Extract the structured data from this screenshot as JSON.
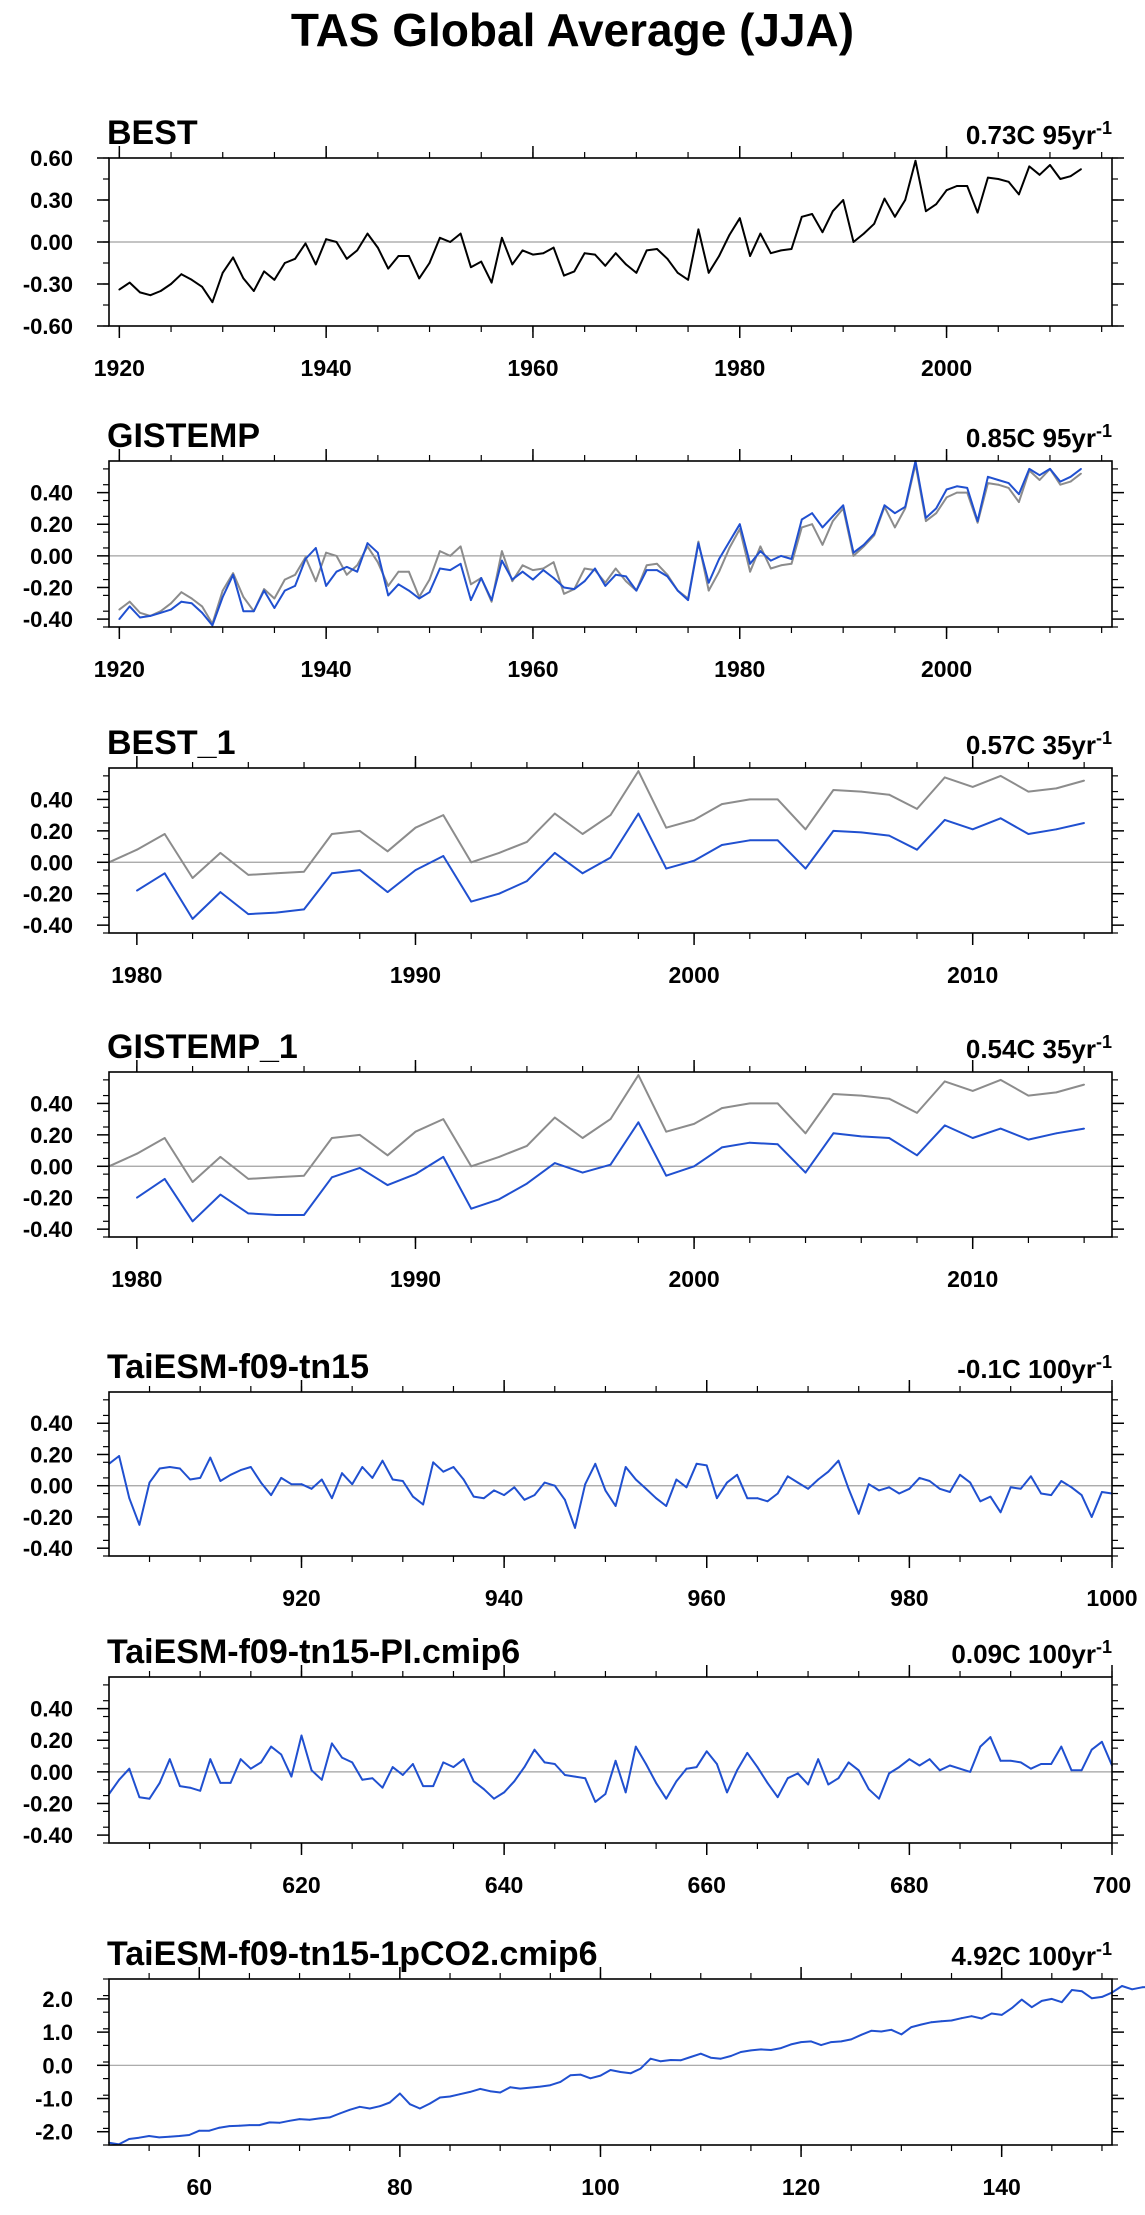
{
  "figure": {
    "title": "TAS Global Average (JJA)"
  },
  "colors": {
    "observed": "#000000",
    "reference": "#8c8c8c",
    "model": "#2050d0",
    "zero_line": "#a0a0a0"
  },
  "chart_data": [
    {
      "type": "line",
      "title": "BEST",
      "trend": "0.73C 95yr",
      "trend_sup": "-1",
      "xlim": [
        1919,
        2016
      ],
      "ylim": [
        -0.6,
        0.6
      ],
      "xticks": [
        1920,
        1940,
        1960,
        1980,
        2000
      ],
      "yticks": [
        -0.6,
        -0.3,
        0.0,
        0.3,
        0.6
      ],
      "ytick_labels": [
        "-0.60",
        "-0.30",
        "0.00",
        "0.30",
        "0.60"
      ],
      "grid": false,
      "series": [
        {
          "role": "observed",
          "x_start": 1920,
          "values": [
            -0.34,
            -0.29,
            -0.36,
            -0.38,
            -0.35,
            -0.3,
            -0.23,
            -0.27,
            -0.32,
            -0.43,
            -0.22,
            -0.11,
            -0.26,
            -0.35,
            -0.21,
            -0.27,
            -0.15,
            -0.12,
            -0.01,
            -0.16,
            0.02,
            0.0,
            -0.12,
            -0.06,
            0.06,
            -0.04,
            -0.19,
            -0.1,
            -0.1,
            -0.26,
            -0.15,
            0.03,
            0.0,
            0.06,
            -0.18,
            -0.14,
            -0.29,
            0.03,
            -0.16,
            -0.06,
            -0.09,
            -0.08,
            -0.04,
            -0.24,
            -0.21,
            -0.08,
            -0.09,
            -0.17,
            -0.08,
            -0.16,
            -0.22,
            -0.06,
            -0.05,
            -0.12,
            -0.22,
            -0.27,
            0.09,
            -0.22,
            -0.1,
            0.05,
            0.17,
            -0.1,
            0.06,
            -0.08,
            -0.06,
            -0.05,
            0.18,
            0.2,
            0.07,
            0.22,
            0.3,
            0.0,
            0.06,
            0.13,
            0.31,
            0.18,
            0.3,
            0.58,
            0.22,
            0.27,
            0.37,
            0.4,
            0.4,
            0.21,
            0.46,
            0.45,
            0.43,
            0.34,
            0.54,
            0.48,
            0.55,
            0.45,
            0.47,
            0.52
          ]
        }
      ]
    },
    {
      "type": "line",
      "title": "GISTEMP",
      "trend": "0.85C 95yr",
      "trend_sup": "-1",
      "xlim": [
        1919,
        2016
      ],
      "ylim": [
        -0.45,
        0.6
      ],
      "xticks": [
        1920,
        1940,
        1960,
        1980,
        2000
      ],
      "yticks": [
        -0.4,
        -0.2,
        0.0,
        0.2,
        0.4
      ],
      "ytick_labels": [
        "-0.40",
        "-0.20",
        "0.00",
        "0.20",
        "0.40"
      ],
      "grid": false,
      "series": [
        {
          "role": "reference",
          "x_start": 1920,
          "values": [
            -0.34,
            -0.29,
            -0.36,
            -0.38,
            -0.35,
            -0.3,
            -0.23,
            -0.27,
            -0.32,
            -0.43,
            -0.22,
            -0.11,
            -0.26,
            -0.35,
            -0.21,
            -0.27,
            -0.15,
            -0.12,
            -0.01,
            -0.16,
            0.02,
            0.0,
            -0.12,
            -0.06,
            0.06,
            -0.04,
            -0.19,
            -0.1,
            -0.1,
            -0.26,
            -0.15,
            0.03,
            0.0,
            0.06,
            -0.18,
            -0.14,
            -0.29,
            0.03,
            -0.16,
            -0.06,
            -0.09,
            -0.08,
            -0.04,
            -0.24,
            -0.21,
            -0.08,
            -0.09,
            -0.17,
            -0.08,
            -0.16,
            -0.22,
            -0.06,
            -0.05,
            -0.12,
            -0.22,
            -0.27,
            0.09,
            -0.22,
            -0.1,
            0.05,
            0.17,
            -0.1,
            0.06,
            -0.08,
            -0.06,
            -0.05,
            0.18,
            0.2,
            0.07,
            0.22,
            0.3,
            0.0,
            0.06,
            0.13,
            0.31,
            0.18,
            0.3,
            0.58,
            0.22,
            0.27,
            0.37,
            0.4,
            0.4,
            0.21,
            0.46,
            0.45,
            0.43,
            0.34,
            0.54,
            0.48,
            0.55,
            0.45,
            0.47,
            0.52
          ]
        },
        {
          "role": "model",
          "x_start": 1920,
          "values": [
            -0.4,
            -0.32,
            -0.39,
            -0.38,
            -0.36,
            -0.34,
            -0.29,
            -0.3,
            -0.36,
            -0.44,
            -0.26,
            -0.12,
            -0.35,
            -0.35,
            -0.22,
            -0.33,
            -0.22,
            -0.19,
            -0.02,
            0.05,
            -0.19,
            -0.1,
            -0.07,
            -0.1,
            0.08,
            0.02,
            -0.25,
            -0.18,
            -0.22,
            -0.27,
            -0.23,
            -0.08,
            -0.09,
            -0.05,
            -0.28,
            -0.14,
            -0.28,
            -0.03,
            -0.15,
            -0.1,
            -0.15,
            -0.09,
            -0.14,
            -0.2,
            -0.21,
            -0.16,
            -0.08,
            -0.19,
            -0.12,
            -0.13,
            -0.22,
            -0.09,
            -0.09,
            -0.13,
            -0.22,
            -0.28,
            0.08,
            -0.17,
            -0.02,
            0.09,
            0.2,
            -0.05,
            0.03,
            -0.03,
            0.0,
            -0.02,
            0.23,
            0.27,
            0.18,
            0.25,
            0.32,
            0.02,
            0.07,
            0.14,
            0.32,
            0.27,
            0.31,
            0.6,
            0.24,
            0.3,
            0.42,
            0.44,
            0.43,
            0.22,
            0.5,
            0.48,
            0.46,
            0.39,
            0.55,
            0.51,
            0.55,
            0.47,
            0.5,
            0.55
          ]
        }
      ]
    },
    {
      "type": "line",
      "title": "BEST_1",
      "trend": "0.57C 35yr",
      "trend_sup": "-1",
      "xlim": [
        1979,
        2015
      ],
      "ylim": [
        -0.45,
        0.6
      ],
      "xticks": [
        1980,
        1990,
        2000,
        2010
      ],
      "yticks": [
        -0.4,
        -0.2,
        0.0,
        0.2,
        0.4
      ],
      "ytick_labels": [
        "-0.40",
        "-0.20",
        "0.00",
        "0.20",
        "0.40"
      ],
      "grid": false,
      "series": [
        {
          "role": "reference",
          "x_start": 1979,
          "values": [
            0.0,
            0.08,
            0.18,
            -0.1,
            0.06,
            -0.08,
            -0.07,
            -0.06,
            0.18,
            0.2,
            0.07,
            0.22,
            0.3,
            0.0,
            0.06,
            0.13,
            0.31,
            0.18,
            0.3,
            0.58,
            0.22,
            0.27,
            0.37,
            0.4,
            0.4,
            0.21,
            0.46,
            0.45,
            0.43,
            0.34,
            0.54,
            0.48,
            0.55,
            0.45,
            0.47,
            0.52
          ]
        },
        {
          "role": "model",
          "x_start": 1980,
          "values": [
            -0.18,
            -0.07,
            -0.36,
            -0.19,
            -0.33,
            -0.32,
            -0.3,
            -0.07,
            -0.05,
            -0.19,
            -0.05,
            0.04,
            -0.25,
            -0.2,
            -0.12,
            0.06,
            -0.07,
            0.03,
            0.31,
            -0.04,
            0.01,
            0.11,
            0.14,
            0.14,
            -0.04,
            0.2,
            0.19,
            0.17,
            0.08,
            0.27,
            0.21,
            0.28,
            0.18,
            0.21,
            0.25
          ]
        }
      ]
    },
    {
      "type": "line",
      "title": "GISTEMP_1",
      "trend": "0.54C 35yr",
      "trend_sup": "-1",
      "xlim": [
        1979,
        2015
      ],
      "ylim": [
        -0.45,
        0.6
      ],
      "xticks": [
        1980,
        1990,
        2000,
        2010
      ],
      "yticks": [
        -0.4,
        -0.2,
        0.0,
        0.2,
        0.4
      ],
      "ytick_labels": [
        "-0.40",
        "-0.20",
        "0.00",
        "0.20",
        "0.40"
      ],
      "grid": false,
      "series": [
        {
          "role": "reference",
          "x_start": 1979,
          "values": [
            0.0,
            0.08,
            0.18,
            -0.1,
            0.06,
            -0.08,
            -0.07,
            -0.06,
            0.18,
            0.2,
            0.07,
            0.22,
            0.3,
            0.0,
            0.06,
            0.13,
            0.31,
            0.18,
            0.3,
            0.58,
            0.22,
            0.27,
            0.37,
            0.4,
            0.4,
            0.21,
            0.46,
            0.45,
            0.43,
            0.34,
            0.54,
            0.48,
            0.55,
            0.45,
            0.47,
            0.52
          ]
        },
        {
          "role": "model",
          "x_start": 1980,
          "values": [
            -0.2,
            -0.08,
            -0.35,
            -0.18,
            -0.3,
            -0.31,
            -0.31,
            -0.07,
            -0.01,
            -0.12,
            -0.05,
            0.06,
            -0.27,
            -0.21,
            -0.11,
            0.02,
            -0.04,
            0.01,
            0.28,
            -0.06,
            0.0,
            0.12,
            0.15,
            0.14,
            -0.04,
            0.21,
            0.19,
            0.18,
            0.07,
            0.26,
            0.18,
            0.24,
            0.17,
            0.21,
            0.24
          ]
        }
      ]
    },
    {
      "type": "line",
      "title": "TaiESM-f09-tn15",
      "trend": "-0.1C 100yr",
      "trend_sup": "-1",
      "xlim": [
        901,
        1000
      ],
      "ylim": [
        -0.45,
        0.6
      ],
      "xticks": [
        920,
        940,
        960,
        980,
        1000
      ],
      "yticks": [
        -0.4,
        -0.2,
        0.0,
        0.2,
        0.4
      ],
      "ytick_labels": [
        "-0.40",
        "-0.20",
        "0.00",
        "0.20",
        "0.40"
      ],
      "grid": false,
      "series": [
        {
          "role": "model",
          "x_start": 901,
          "values": [
            0.14,
            0.19,
            -0.08,
            -0.25,
            0.02,
            0.11,
            0.12,
            0.11,
            0.04,
            0.05,
            0.18,
            0.03,
            0.07,
            0.1,
            0.12,
            0.02,
            -0.06,
            0.05,
            0.01,
            0.01,
            -0.02,
            0.04,
            -0.08,
            0.08,
            0.01,
            0.12,
            0.05,
            0.16,
            0.04,
            0.03,
            -0.07,
            -0.12,
            0.15,
            0.09,
            0.12,
            0.04,
            -0.07,
            -0.08,
            -0.03,
            -0.06,
            -0.01,
            -0.09,
            -0.06,
            0.02,
            0.0,
            -0.09,
            -0.27,
            0.01,
            0.14,
            -0.03,
            -0.13,
            0.12,
            0.04,
            -0.02,
            -0.08,
            -0.13,
            0.04,
            -0.01,
            0.14,
            0.13,
            -0.08,
            0.02,
            0.07,
            -0.08,
            -0.08,
            -0.1,
            -0.05,
            0.06,
            0.02,
            -0.02,
            0.04,
            0.09,
            0.16,
            -0.02,
            -0.18,
            0.01,
            -0.03,
            -0.01,
            -0.05,
            -0.02,
            0.05,
            0.03,
            -0.02,
            -0.04,
            0.07,
            0.02,
            -0.1,
            -0.07,
            -0.17,
            -0.01,
            -0.02,
            0.06,
            -0.05,
            -0.06,
            0.03,
            -0.01,
            -0.06,
            -0.2,
            -0.04,
            -0.05
          ]
        }
      ]
    },
    {
      "type": "line",
      "title": "TaiESM-f09-tn15-PI.cmip6",
      "trend": "0.09C 100yr",
      "trend_sup": "-1",
      "xlim": [
        601,
        700
      ],
      "ylim": [
        -0.45,
        0.6
      ],
      "xticks": [
        620,
        640,
        660,
        680,
        700
      ],
      "yticks": [
        -0.4,
        -0.2,
        0.0,
        0.2,
        0.4
      ],
      "ytick_labels": [
        "-0.40",
        "-0.20",
        "0.00",
        "0.20",
        "0.40"
      ],
      "grid": false,
      "series": [
        {
          "role": "model",
          "x_start": 601,
          "values": [
            -0.14,
            -0.05,
            0.02,
            -0.16,
            -0.17,
            -0.07,
            0.08,
            -0.09,
            -0.1,
            -0.12,
            0.08,
            -0.07,
            -0.07,
            0.08,
            0.02,
            0.06,
            0.16,
            0.11,
            -0.03,
            0.23,
            0.01,
            -0.05,
            0.18,
            0.09,
            0.06,
            -0.05,
            -0.04,
            -0.1,
            0.03,
            -0.02,
            0.05,
            -0.09,
            -0.09,
            0.06,
            0.03,
            0.08,
            -0.06,
            -0.11,
            -0.17,
            -0.13,
            -0.06,
            0.03,
            0.14,
            0.06,
            0.05,
            -0.02,
            -0.03,
            -0.04,
            -0.19,
            -0.14,
            0.07,
            -0.13,
            0.16,
            0.05,
            -0.07,
            -0.17,
            -0.06,
            0.02,
            0.03,
            0.13,
            0.05,
            -0.13,
            0.01,
            0.12,
            0.03,
            -0.07,
            -0.16,
            -0.04,
            -0.01,
            -0.08,
            0.08,
            -0.08,
            -0.04,
            0.06,
            0.01,
            -0.11,
            -0.17,
            -0.01,
            0.03,
            0.08,
            0.04,
            0.08,
            0.01,
            0.04,
            0.02,
            0.0,
            0.16,
            0.22,
            0.07,
            0.07,
            0.06,
            0.02,
            0.05,
            0.05,
            0.16,
            0.01,
            0.01,
            0.14,
            0.19,
            0.04
          ]
        }
      ]
    },
    {
      "type": "line",
      "title": "TaiESM-f09-tn15-1pCO2.cmip6",
      "trend": "4.92C 100yr",
      "trend_sup": "-1",
      "xlim": [
        51,
        151
      ],
      "ylim": [
        -2.4,
        2.6
      ],
      "xticks": [
        60,
        80,
        100,
        120,
        140
      ],
      "yticks": [
        -2.0,
        -1.0,
        0.0,
        1.0,
        2.0
      ],
      "ytick_labels": [
        "-2.0",
        "-1.0",
        "0.0",
        "1.0",
        "2.0"
      ],
      "grid": false,
      "series": [
        {
          "role": "model",
          "x_start": 51,
          "values": [
            -2.33,
            -2.38,
            -2.22,
            -2.18,
            -2.13,
            -2.17,
            -2.15,
            -2.13,
            -2.1,
            -1.97,
            -1.97,
            -1.88,
            -1.83,
            -1.82,
            -1.8,
            -1.8,
            -1.72,
            -1.73,
            -1.67,
            -1.62,
            -1.64,
            -1.6,
            -1.57,
            -1.45,
            -1.34,
            -1.25,
            -1.3,
            -1.23,
            -1.12,
            -0.85,
            -1.17,
            -1.3,
            -1.15,
            -0.97,
            -0.94,
            -0.87,
            -0.8,
            -0.71,
            -0.78,
            -0.82,
            -0.66,
            -0.7,
            -0.67,
            -0.64,
            -0.6,
            -0.5,
            -0.3,
            -0.28,
            -0.39,
            -0.31,
            -0.14,
            -0.2,
            -0.24,
            -0.1,
            0.2,
            0.12,
            0.16,
            0.15,
            0.25,
            0.35,
            0.23,
            0.2,
            0.28,
            0.4,
            0.45,
            0.48,
            0.46,
            0.52,
            0.63,
            0.7,
            0.72,
            0.61,
            0.7,
            0.72,
            0.78,
            0.92,
            1.04,
            1.02,
            1.07,
            0.93,
            1.15,
            1.23,
            1.3,
            1.33,
            1.35,
            1.42,
            1.48,
            1.41,
            1.56,
            1.52,
            1.72,
            1.98,
            1.75,
            1.94,
            2.0,
            1.9,
            2.27,
            2.23,
            2.02,
            2.06,
            2.19,
            2.39,
            2.29,
            2.35,
            2.37,
            2.4
          ]
        }
      ]
    }
  ]
}
